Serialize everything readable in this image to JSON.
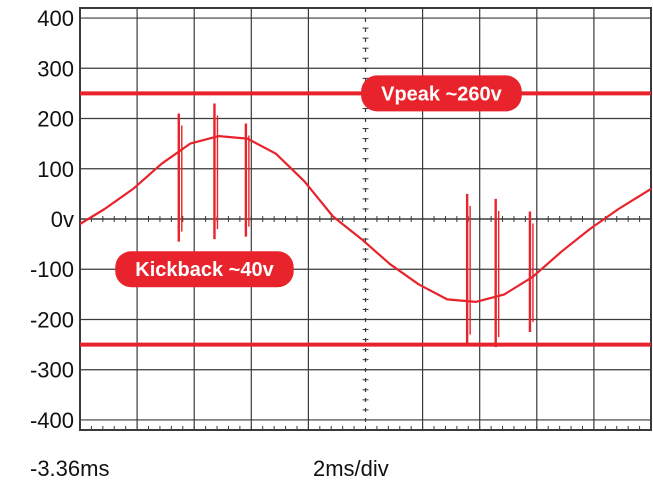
{
  "colors": {
    "trace": "#e8232b",
    "grid": "#3a3a3a",
    "background": "#ffffff",
    "label_pill": "#e8232b",
    "label_text": "#ffffff"
  },
  "chart_data": {
    "type": "line",
    "title": "",
    "xlabel": "",
    "ylabel": "",
    "x_start_label": "-3.36ms",
    "x_scale_label": "2ms/div",
    "x_divisions": 10,
    "xlim": [
      -3.36,
      16.64
    ],
    "ylim": [
      -420,
      420
    ],
    "grid": true,
    "y_ticks": [
      {
        "value": 400,
        "label": "400"
      },
      {
        "value": 300,
        "label": "300"
      },
      {
        "value": 200,
        "label": "200"
      },
      {
        "value": 100,
        "label": "100"
      },
      {
        "value": 0,
        "label": "0v"
      },
      {
        "value": -100,
        "label": "-100"
      },
      {
        "value": -200,
        "label": "-200"
      },
      {
        "value": -300,
        "label": "-300"
      },
      {
        "value": -400,
        "label": "-400"
      }
    ],
    "series": [
      {
        "values_unit": "ms / V",
        "x": [
          -3.36,
          -2.5,
          -1.5,
          -0.5,
          0.5,
          1.5,
          2.5,
          3.5,
          4.5,
          5.0,
          5.5,
          6.5,
          7.5,
          8.5,
          9.5,
          10.5,
          11.5,
          12.5,
          13.5,
          14.5,
          15.5,
          16.64
        ],
        "y": [
          -10,
          20,
          60,
          110,
          150,
          165,
          160,
          130,
          75,
          40,
          5,
          -40,
          -90,
          -130,
          -160,
          -165,
          -150,
          -115,
          -65,
          -20,
          20,
          60
        ]
      }
    ],
    "spikes": [
      {
        "x": 0.1,
        "high": 210,
        "low": -45
      },
      {
        "x": 1.35,
        "high": 230,
        "low": -40
      },
      {
        "x": 2.45,
        "high": 190,
        "low": -35
      },
      {
        "x": 10.2,
        "high": 50,
        "low": -250
      },
      {
        "x": 11.2,
        "high": 40,
        "low": -255
      },
      {
        "x": 12.4,
        "high": 15,
        "low": -225
      }
    ],
    "reference_lines": [
      {
        "value": 250
      },
      {
        "value": -250
      }
    ],
    "annotations": [
      {
        "text": "Vpeak ~260v",
        "x": 9.3,
        "y": 250
      },
      {
        "text": "Kickback ~40v",
        "x": 1.0,
        "y": -100
      }
    ]
  }
}
